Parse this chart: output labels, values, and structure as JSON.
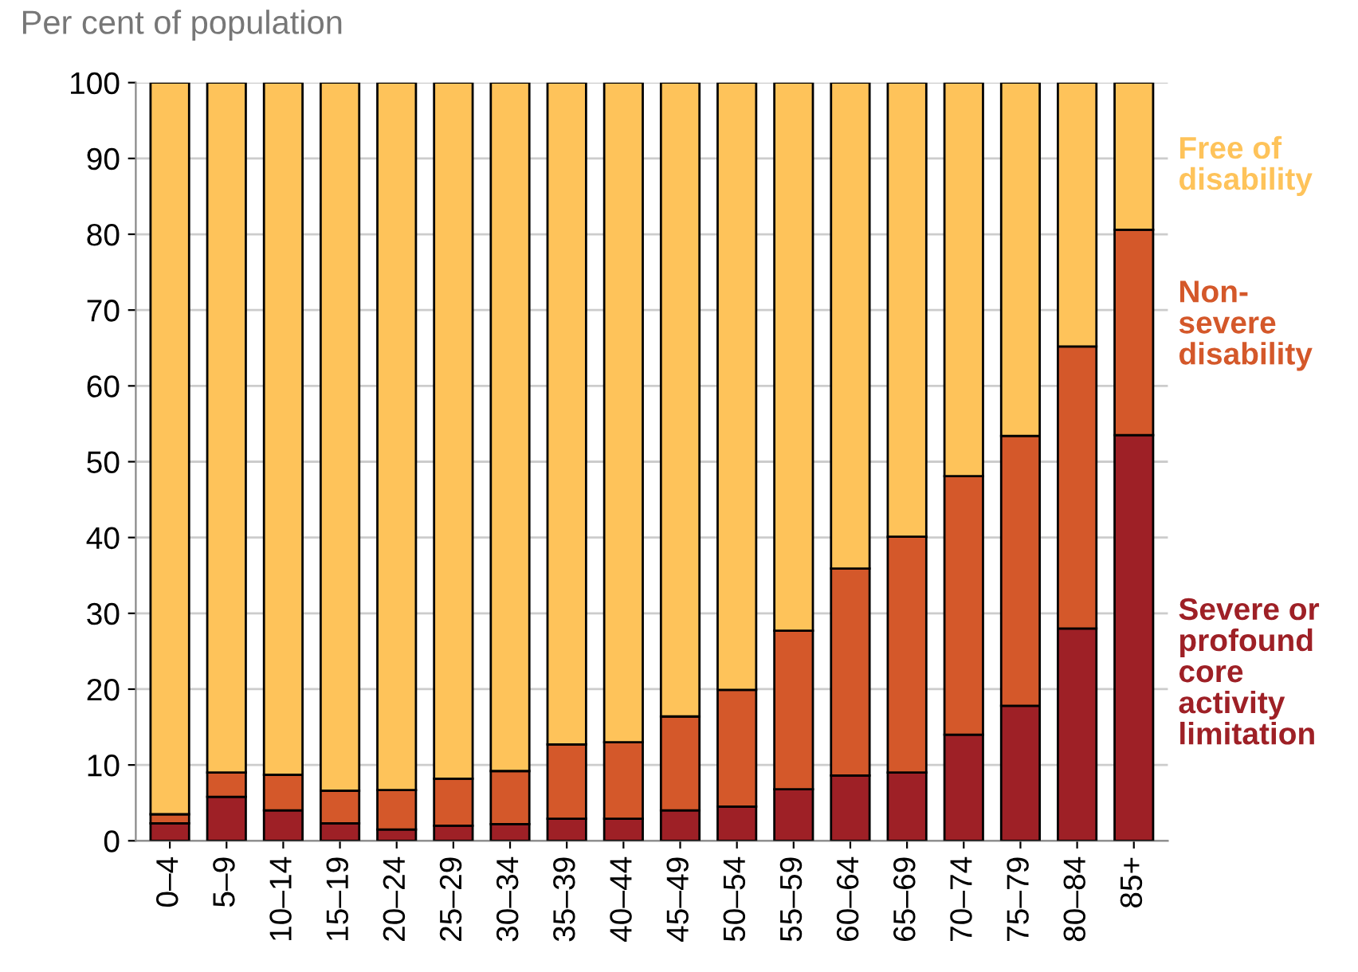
{
  "chart_data": {
    "type": "bar",
    "stacked": true,
    "ylabel": "Per cent of population",
    "categories": [
      "0–4",
      "5–9",
      "10–14",
      "15–19",
      "20–24",
      "25–29",
      "30–34",
      "35–39",
      "40–44",
      "45–49",
      "50–54",
      "55–59",
      "60–64",
      "65–69",
      "70–74",
      "75–79",
      "80–84",
      "85+"
    ],
    "series": [
      {
        "name": "Severe or profound core activity limitation",
        "color": "#9e2026",
        "values": [
          2.3,
          5.8,
          4.0,
          2.3,
          1.5,
          2.0,
          2.2,
          2.9,
          2.9,
          4.0,
          4.5,
          6.8,
          8.6,
          9.0,
          14.0,
          17.8,
          28.0,
          53.5
        ]
      },
      {
        "name": "Non-severe disability",
        "color": "#d4582a",
        "values": [
          1.2,
          3.2,
          4.7,
          4.3,
          5.2,
          6.2,
          7.0,
          9.8,
          10.1,
          12.4,
          15.4,
          20.9,
          27.3,
          31.1,
          34.1,
          35.6,
          37.2,
          27.1
        ]
      },
      {
        "name": "Free of disability",
        "color": "#fec35a",
        "values": [
          96.5,
          91.0,
          91.3,
          93.4,
          93.3,
          91.8,
          90.8,
          87.3,
          87.0,
          83.6,
          80.1,
          72.3,
          64.1,
          59.9,
          51.9,
          46.6,
          34.8,
          19.4
        ]
      }
    ],
    "ylim": [
      0,
      100
    ],
    "yticks": [
      0,
      10,
      20,
      30,
      40,
      50,
      60,
      70,
      80,
      90,
      100
    ],
    "grid": "y",
    "legend": "right"
  }
}
